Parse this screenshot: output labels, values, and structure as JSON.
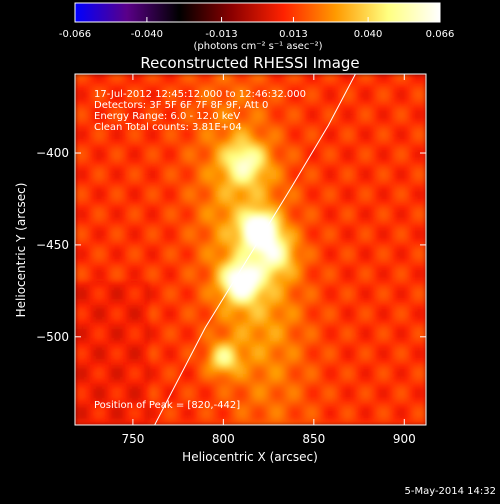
{
  "chart_data": {
    "type": "heatmap",
    "title": "Reconstructed RHESSI Image",
    "colorbar": {
      "tick_labels": [
        "-0.066",
        "-0.040",
        "-0.013",
        "0.013",
        "0.040",
        "0.066"
      ],
      "tick_values": [
        -0.066,
        -0.04,
        -0.013,
        0.013,
        0.04,
        0.066
      ],
      "range": [
        -0.066,
        0.066
      ],
      "colormap": [
        "#0000ff",
        "#5a0088",
        "#000000",
        "#8a0000",
        "#ff2200",
        "#ff9a00",
        "#ffff80",
        "#ffffff"
      ],
      "units_label": "(photons cm⁻² s⁻¹ asec⁻²)"
    },
    "xlabel": "Heliocentric X (arcsec)",
    "ylabel": "Heliocentric Y (arcsec)",
    "xlim": [
      718,
      912
    ],
    "ylim": [
      -548,
      -357
    ],
    "x_ticks": [
      750,
      800,
      850,
      900
    ],
    "y_ticks": [
      -400,
      -450,
      -500
    ],
    "x_tick_labels": [
      "750",
      "800",
      "850",
      "900"
    ],
    "y_tick_labels": [
      "−400",
      "−450",
      "−500"
    ],
    "info_lines": [
      "17-Jul-2012 12:45:12.000 to 12:46:32.000",
      "Detectors: 3F 5F 6F 7F 8F 9F, Att 0",
      "Energy Range: 6.0 - 12.0 keV",
      "Clean     Total counts: 3.81E+04"
    ],
    "peak_label": "Position of Peak = [820,-442]",
    "peak": [
      820,
      -442
    ],
    "sources": [
      {
        "x": 820,
        "y": -442,
        "amplitude": 0.066,
        "sigma": 6
      },
      {
        "x": 810,
        "y": -470,
        "amplitude": 0.05,
        "sigma": 7
      },
      {
        "x": 812,
        "y": -405,
        "amplitude": 0.032,
        "sigma": 8
      },
      {
        "x": 800,
        "y": -512,
        "amplitude": 0.03,
        "sigma": 6
      },
      {
        "x": 828,
        "y": -455,
        "amplitude": 0.03,
        "sigma": 8
      }
    ],
    "limb_curve": [
      [
        762,
        -548
      ],
      [
        790,
        -495
      ],
      [
        815,
        -455
      ],
      [
        838,
        -418
      ],
      [
        858,
        -385
      ],
      [
        873,
        -357
      ]
    ],
    "grid": false
  },
  "date_stamp": "5-May-2014 14:32"
}
